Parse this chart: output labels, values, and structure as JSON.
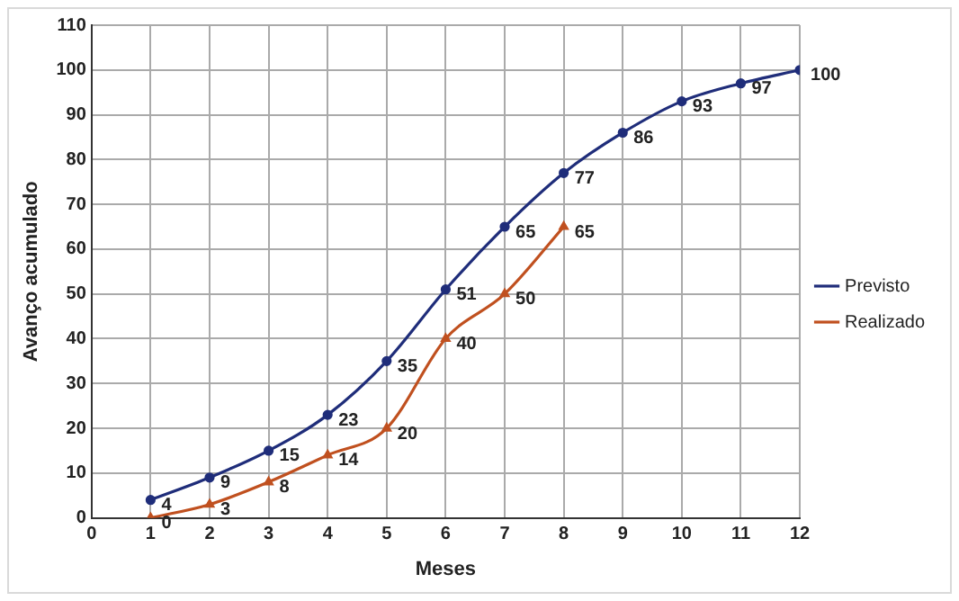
{
  "chart_data": {
    "type": "line",
    "xlabel": "Meses",
    "ylabel": "Avanço acumulado",
    "xlim": [
      0,
      12
    ],
    "xticks": [
      0,
      1,
      2,
      3,
      4,
      5,
      6,
      7,
      8,
      9,
      10,
      11,
      12
    ],
    "ylim": [
      0,
      110
    ],
    "yticks": [
      0,
      10,
      20,
      30,
      40,
      50,
      60,
      70,
      80,
      90,
      100,
      110
    ],
    "grid": true,
    "legend": "right",
    "data_labels": true,
    "line_style": "solid",
    "series": [
      {
        "name": "Previsto",
        "color": "#1f2d7a",
        "marker": "circle",
        "x": [
          1,
          2,
          3,
          4,
          5,
          6,
          7,
          8,
          9,
          10,
          11,
          12
        ],
        "values": [
          4,
          9,
          15,
          23,
          35,
          51,
          65,
          77,
          86,
          93,
          97,
          100
        ]
      },
      {
        "name": "Realizado",
        "color": "#c0501f",
        "marker": "triangle",
        "x": [
          1,
          2,
          3,
          4,
          5,
          6,
          7,
          8
        ],
        "values": [
          0,
          3,
          8,
          14,
          20,
          40,
          50,
          65
        ]
      }
    ]
  }
}
